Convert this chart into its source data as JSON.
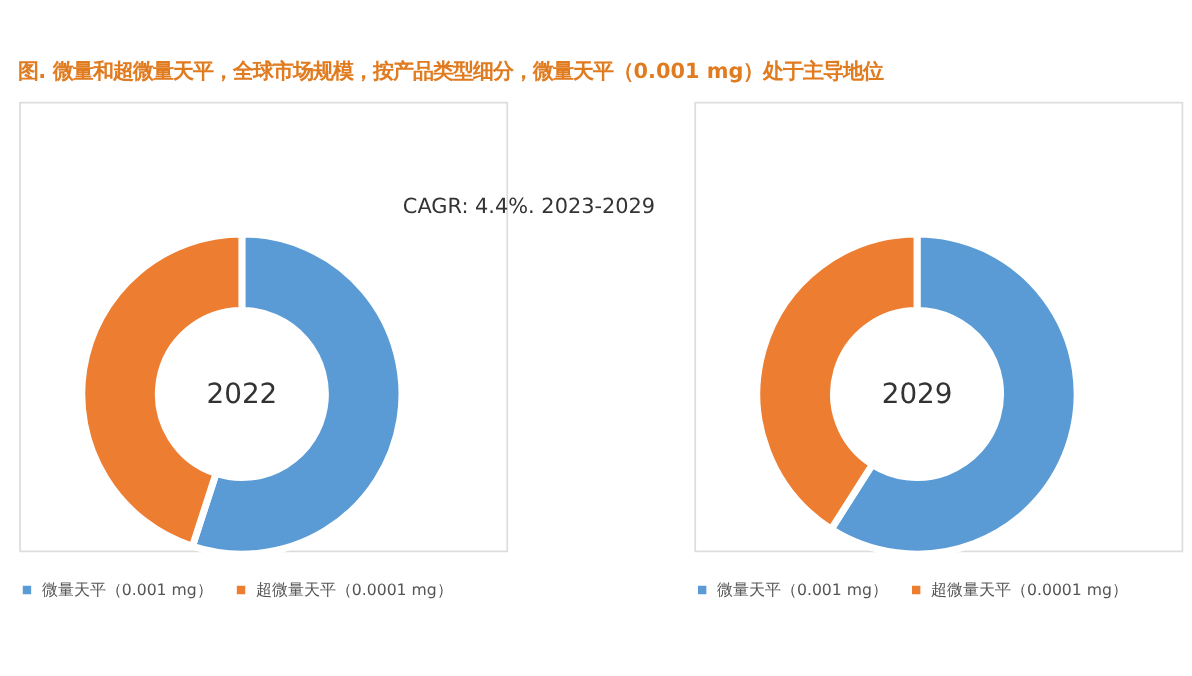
{
  "chart_data": [
    {
      "type": "donut",
      "title": "图.    微量和超微量天平，全球市场规模，按产品类型细分，微量天平（0.001 mg）处于主导地位",
      "annotations": [
        "CAGR: 4.4%. 2023-2029",
        "2022"
      ],
      "categories": [
        "微量天平（0.001 mg）",
        "超微量天平（0.0001 mg）"
      ],
      "values": [
        55,
        45
      ],
      "colors": [
        "#5b9bd5",
        "#ed7d31"
      ],
      "legend": "bottom"
    },
    {
      "type": "donut",
      "annotations": [
        "2029"
      ],
      "categories": [
        "微量天平（0.001 mg）",
        "超微量天平（0.0001 mg）"
      ],
      "values": [
        59,
        41
      ],
      "colors": [
        "#5b9bd5",
        "#ed7d31"
      ],
      "legend": "bottom"
    }
  ]
}
